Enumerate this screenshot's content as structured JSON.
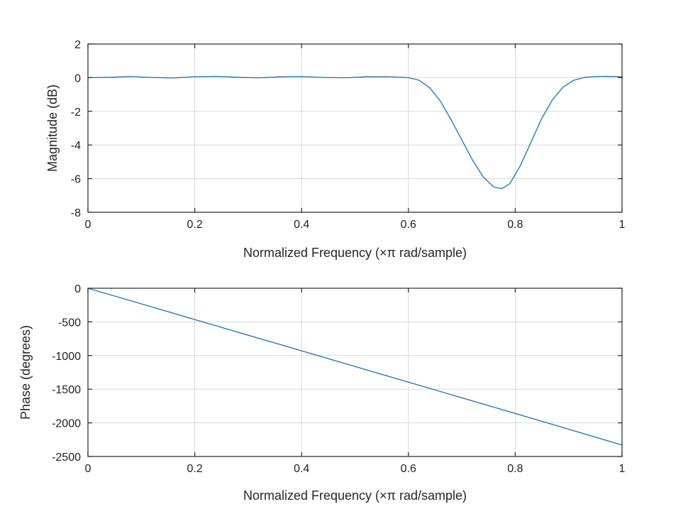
{
  "colors": {
    "series": "#1f6fb2",
    "grid": "#d9d9d9",
    "axis": "#262626",
    "background": "#ffffff"
  },
  "chart_data": [
    {
      "type": "line",
      "title": "",
      "xlabel": "Normalized Frequency (×π rad/sample)",
      "ylabel": "Magnitude (dB)",
      "xlim": [
        0,
        1
      ],
      "ylim": [
        -8,
        2
      ],
      "xticks": [
        0,
        0.2,
        0.4,
        0.6,
        0.8,
        1
      ],
      "xtick_labels": [
        "0",
        "0.2",
        "0.4",
        "0.6",
        "0.8",
        "1"
      ],
      "yticks": [
        2,
        0,
        -2,
        -4,
        -6,
        -8
      ],
      "ytick_labels": [
        "2",
        "0",
        "-2",
        "-4",
        "-6",
        "-8"
      ],
      "grid": true,
      "series": [
        {
          "x": [
            0,
            0.04,
            0.08,
            0.12,
            0.16,
            0.2,
            0.24,
            0.28,
            0.32,
            0.36,
            0.4,
            0.44,
            0.48,
            0.52,
            0.56,
            0.6,
            0.62,
            0.64,
            0.66,
            0.68,
            0.7,
            0.72,
            0.74,
            0.76,
            0.775,
            0.79,
            0.81,
            0.83,
            0.85,
            0.87,
            0.89,
            0.91,
            0.93,
            0.95,
            0.97,
            1.0
          ],
          "y": [
            0,
            0.02,
            0.07,
            0.01,
            -0.02,
            0.06,
            0.08,
            0.02,
            -0.01,
            0.05,
            0.07,
            0.01,
            -0.01,
            0.05,
            0.06,
            0.0,
            -0.15,
            -0.6,
            -1.4,
            -2.5,
            -3.7,
            -4.9,
            -5.9,
            -6.5,
            -6.6,
            -6.3,
            -5.2,
            -3.8,
            -2.4,
            -1.3,
            -0.55,
            -0.15,
            0.02,
            0.07,
            0.08,
            0.05
          ]
        }
      ]
    },
    {
      "type": "line",
      "title": "",
      "xlabel": "Normalized Frequency (×π rad/sample)",
      "ylabel": "Phase (degrees)",
      "xlim": [
        0,
        1
      ],
      "ylim": [
        -2500,
        0
      ],
      "xticks": [
        0,
        0.2,
        0.4,
        0.6,
        0.8,
        1
      ],
      "xtick_labels": [
        "0",
        "0.2",
        "0.4",
        "0.6",
        "0.8",
        "1"
      ],
      "yticks": [
        0,
        -500,
        -1000,
        -1500,
        -2000,
        -2500
      ],
      "ytick_labels": [
        "0",
        "-500",
        "-1000",
        "-1500",
        "-2000",
        "-2500"
      ],
      "grid": true,
      "series": [
        {
          "x": [
            0,
            0.2,
            0.4,
            0.6,
            0.8,
            1.0
          ],
          "y": [
            0,
            -465,
            -930,
            -1395,
            -1860,
            -2330
          ]
        }
      ]
    }
  ]
}
